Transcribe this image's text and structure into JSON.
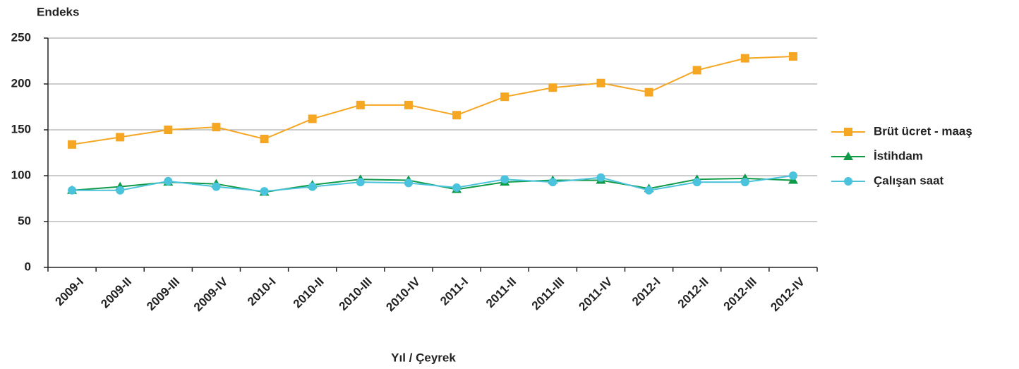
{
  "chart_data": {
    "type": "line",
    "y_label": "Endeks",
    "x_label": "Yıl / Çeyrek",
    "categories": [
      "2009-I",
      "2009-II",
      "2009-III",
      "2009-IV",
      "2010-I",
      "2010-II",
      "2010-III",
      "2010-IV",
      "2011-I",
      "2011-II",
      "2011-III",
      "2011-IV",
      "2012-I",
      "2012-II",
      "2012-III",
      "2012-IV"
    ],
    "series": [
      {
        "name": "Brüt ücret - maaş",
        "color": "#f5a623",
        "marker": "square",
        "values": [
          134,
          142,
          150,
          153,
          140,
          162,
          177,
          177,
          166,
          186,
          196,
          201,
          191,
          215,
          228,
          230
        ]
      },
      {
        "name": "İstihdam",
        "color": "#0f9a48",
        "marker": "triangle",
        "values": [
          84,
          88,
          93,
          91,
          82,
          90,
          96,
          95,
          85,
          93,
          95,
          95,
          86,
          96,
          97,
          95
        ]
      },
      {
        "name": "Çalışan saat",
        "color": "#4cc3dc",
        "marker": "circle",
        "values": [
          84,
          84,
          94,
          88,
          83,
          88,
          93,
          92,
          87,
          96,
          93,
          98,
          84,
          93,
          93,
          100
        ]
      }
    ],
    "ylim": [
      0,
      250
    ],
    "yticks": [
      0,
      50,
      100,
      150,
      200,
      250
    ],
    "grid": true,
    "legend": "right"
  }
}
